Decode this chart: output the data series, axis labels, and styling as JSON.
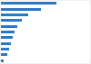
{
  "values": [
    87,
    62,
    42,
    33,
    26,
    22,
    18,
    15,
    13,
    10,
    4
  ],
  "bar_color": "#2878c8",
  "background_color": "#f0f0f0",
  "plot_background": "#ffffff",
  "bar_height": 0.5,
  "figsize": [
    1.0,
    0.71
  ],
  "dpi": 100
}
